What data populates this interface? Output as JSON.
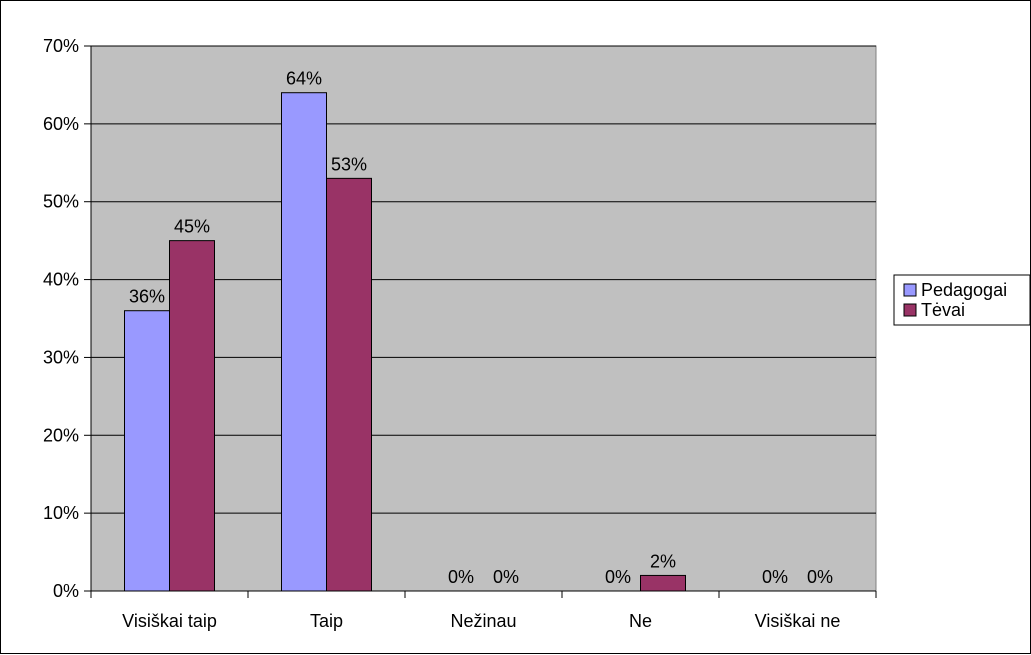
{
  "chart_data": {
    "type": "bar",
    "title": "",
    "xlabel": "",
    "ylabel": "",
    "categories": [
      "Visiškai taip",
      "Taip",
      "Nežinau",
      "Ne",
      "Visiškai ne"
    ],
    "series": [
      {
        "name": "Pedagogai",
        "values": [
          36,
          64,
          0,
          0,
          0
        ],
        "color": "#9999ff"
      },
      {
        "name": "Tėvai",
        "values": [
          45,
          53,
          0,
          2,
          0
        ],
        "color": "#993366"
      }
    ],
    "data_labels": [
      [
        "36%",
        "64%",
        "0%",
        "0%",
        "0%"
      ],
      [
        "45%",
        "53%",
        "0%",
        "2%",
        "0%"
      ]
    ],
    "ylim": [
      0,
      70
    ],
    "yticks": [
      0,
      10,
      20,
      30,
      40,
      50,
      60,
      70
    ],
    "ytick_labels": [
      "0%",
      "10%",
      "20%",
      "30%",
      "40%",
      "50%",
      "60%",
      "70%"
    ],
    "grid": true,
    "plot_background": "#c0c0c0",
    "legend_position": "right"
  }
}
